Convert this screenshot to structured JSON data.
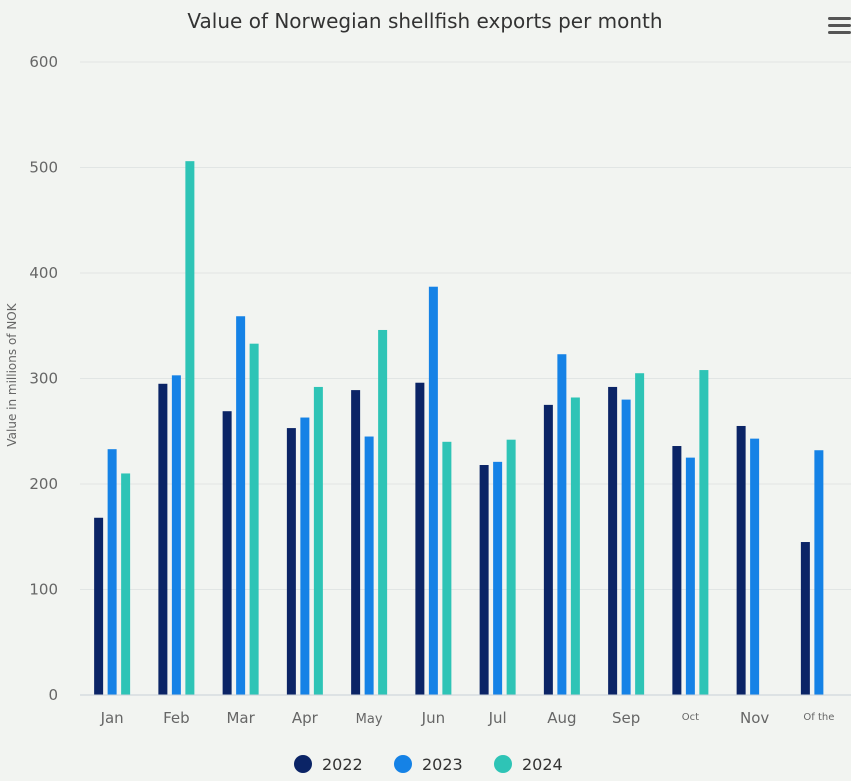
{
  "chart_data": {
    "type": "bar",
    "title": "Value of Norwegian shellfish exports per month",
    "ylabel": "Value in millions of NOK",
    "xlabel": "",
    "ylim": [
      0,
      600
    ],
    "yticks": [
      0,
      100,
      200,
      300,
      400,
      500,
      600
    ],
    "grid": true,
    "legend_position": "bottom",
    "categories": [
      "Jan",
      "Feb",
      "Mar",
      "Apr",
      "May",
      "Jun",
      "Jul",
      "Aug",
      "Sep",
      "Oct",
      "Nov",
      "Of the"
    ],
    "series": [
      {
        "name": "2022",
        "color": "#0b2466",
        "values": [
          168,
          295,
          269,
          253,
          289,
          296,
          218,
          275,
          292,
          236,
          255,
          145
        ]
      },
      {
        "name": "2023",
        "color": "#1582e6",
        "values": [
          233,
          303,
          359,
          263,
          245,
          387,
          221,
          323,
          280,
          225,
          243,
          232
        ]
      },
      {
        "name": "2024",
        "color": "#2ec4b6",
        "values": [
          210,
          506,
          333,
          292,
          346,
          240,
          242,
          282,
          305,
          308,
          null,
          null
        ]
      }
    ]
  },
  "menu_icon": "hamburger-menu-icon"
}
